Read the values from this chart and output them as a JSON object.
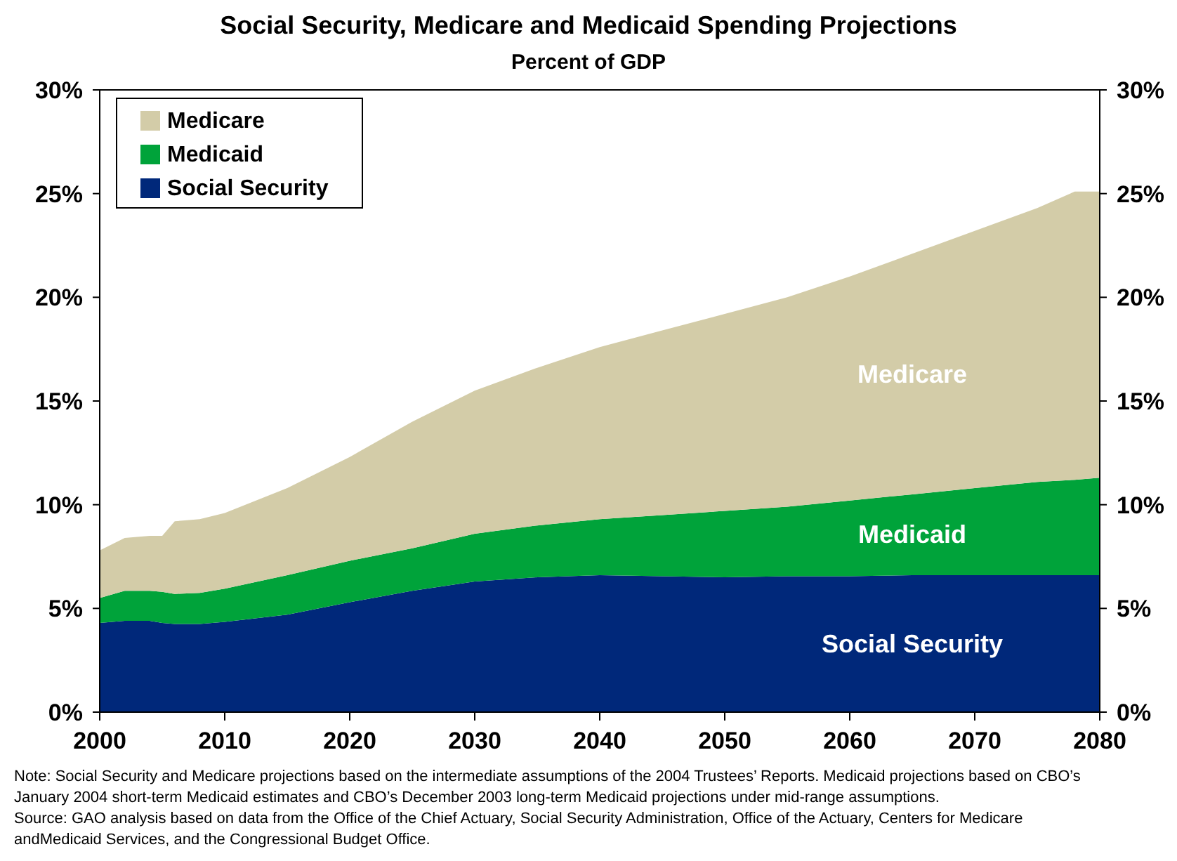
{
  "chart_data": {
    "type": "area",
    "stacked": true,
    "title": "Social Security, Medicare and Medicaid Spending Projections",
    "subtitle": "Percent of GDP",
    "x": [
      2000,
      2002,
      2004,
      2005,
      2006,
      2008,
      2010,
      2015,
      2020,
      2025,
      2030,
      2035,
      2040,
      2045,
      2050,
      2055,
      2060,
      2065,
      2070,
      2075,
      2078,
      2080
    ],
    "series": [
      {
        "name": "Social Security",
        "color": "#00287a",
        "values": [
          4.3,
          4.4,
          4.4,
          4.3,
          4.25,
          4.25,
          4.35,
          4.7,
          5.3,
          5.85,
          6.3,
          6.5,
          6.6,
          6.55,
          6.5,
          6.55,
          6.55,
          6.6,
          6.6,
          6.6,
          6.6,
          6.6
        ]
      },
      {
        "name": "Medicaid",
        "color": "#00a33a",
        "values": [
          1.2,
          1.45,
          1.45,
          1.5,
          1.45,
          1.5,
          1.6,
          1.9,
          2.0,
          2.05,
          2.3,
          2.5,
          2.7,
          2.95,
          3.2,
          3.35,
          3.65,
          3.9,
          4.2,
          4.5,
          4.6,
          4.7
        ]
      },
      {
        "name": "Medicare",
        "color": "#d3cca8",
        "values": [
          2.3,
          2.55,
          2.65,
          2.7,
          3.5,
          3.55,
          3.65,
          4.2,
          5.0,
          6.1,
          6.9,
          7.6,
          8.3,
          8.9,
          9.5,
          10.1,
          10.8,
          11.6,
          12.4,
          13.2,
          13.9,
          13.8
        ]
      }
    ],
    "xlim": [
      2000,
      2080
    ],
    "xticks": [
      2000,
      2010,
      2020,
      2030,
      2040,
      2050,
      2060,
      2070,
      2080
    ],
    "ylim": [
      0,
      30
    ],
    "yticks": [
      {
        "value": 0,
        "label": "0%"
      },
      {
        "value": 5,
        "label": "5%"
      },
      {
        "value": 10,
        "label": "10%"
      },
      {
        "value": 15,
        "label": "15%"
      },
      {
        "value": 20,
        "label": "20%"
      },
      {
        "value": 25,
        "label": "25%"
      },
      {
        "value": 30,
        "label": "30%"
      }
    ],
    "y2lim": [
      0,
      30
    ],
    "y2ticks": [
      {
        "value": 0,
        "label": "0%"
      },
      {
        "value": 5,
        "label": "5%"
      },
      {
        "value": 10,
        "label": "10%"
      },
      {
        "value": 15,
        "label": "15%"
      },
      {
        "value": 20,
        "label": "20%"
      },
      {
        "value": 25,
        "label": "25%"
      },
      {
        "value": 30,
        "label": "30%"
      }
    ],
    "legend": "top left",
    "grid": false,
    "annotations": [
      "Note:  Social Security and Medicare projections based on the intermediate assumptions of the 2004 Trustees’ Reports.  Medicaid projections based on CBO’s January 2004 short-term Medicaid estimates and CBO’s December 2003 long-term Medicaid projections under mid-range assumptions.",
      "Source:  GAO analysis based on data from the Office of the Chief Actuary, Social Security Administration, Office of the Actuary, Centers for Medicare andMedicaid Services, and the Congressional Budget Office."
    ]
  }
}
